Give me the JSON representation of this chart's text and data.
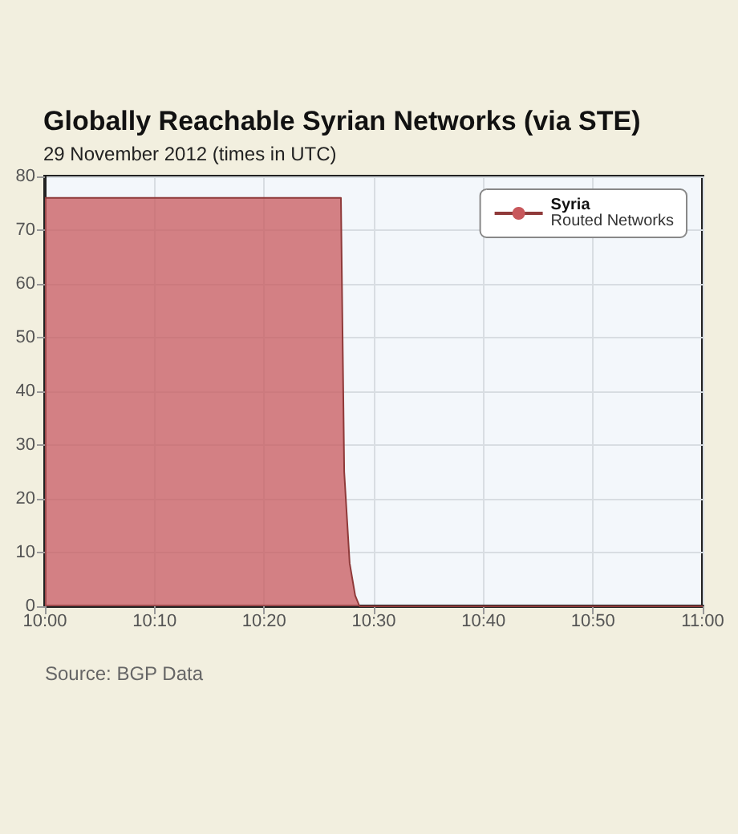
{
  "chart_data": {
    "type": "area",
    "title": "Globally Reachable Syrian Networks (via STE)",
    "subtitle": "29 November 2012 (times in UTC)",
    "x": [
      10,
      10.45,
      10.4517,
      10.455,
      10.4633,
      10.4717,
      10.4783,
      11
    ],
    "series": [
      {
        "name": "Syria",
        "color": "#c8585c",
        "values": [
          76,
          76,
          76,
          25,
          8,
          2,
          0,
          0
        ]
      }
    ],
    "legend_title": "Routed Networks",
    "xlim": [
      10,
      11
    ],
    "xticks": [
      {
        "value": 10,
        "label": "10:00"
      },
      {
        "value": 10.1667,
        "label": "10:10"
      },
      {
        "value": 10.3333,
        "label": "10:20"
      },
      {
        "value": 10.5,
        "label": "10:30"
      },
      {
        "value": 10.6667,
        "label": "10:40"
      },
      {
        "value": 10.8333,
        "label": "10:50"
      },
      {
        "value": 11,
        "label": "11:00"
      }
    ],
    "ylim": [
      0,
      80
    ],
    "yticks": [
      0,
      10,
      20,
      30,
      40,
      50,
      60,
      70,
      80
    ],
    "grid": true,
    "legend": "top right",
    "annotations": [
      "Source: BGP Data"
    ]
  }
}
